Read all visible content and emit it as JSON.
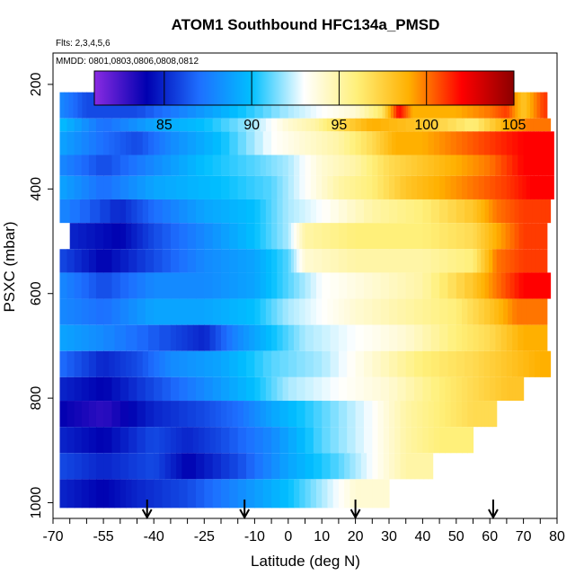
{
  "chart_data": {
    "type": "heatmap",
    "title": "ATOM1 Southbound HFC134a_PMSD",
    "annotations": [
      "Flts: 2,3,4,5,6",
      "MMDD: 0801,0803,0806,0808,0812"
    ],
    "xlabel": "Latitude (deg N)",
    "ylabel": "PSXC (mbar)",
    "xlim": [
      -70,
      80
    ],
    "ylim": [
      1030,
      140
    ],
    "x_ticks": [
      -70,
      -55,
      -40,
      -25,
      -10,
      0,
      10,
      20,
      30,
      40,
      50,
      60,
      70,
      80
    ],
    "x_tick_labels": [
      "-70",
      "-55",
      "-40",
      "-25",
      "-10",
      "0",
      "10",
      "20",
      "30",
      "40",
      "50",
      "60",
      "70",
      "80"
    ],
    "y_ticks": [
      200,
      400,
      600,
      800,
      1000
    ],
    "y_tick_labels": [
      "200",
      "400",
      "600",
      "800",
      "1000"
    ],
    "colorbar": {
      "range": [
        81,
        105
      ],
      "ticks": [
        85,
        90,
        95,
        100,
        105
      ],
      "tick_labels": [
        "85",
        "90",
        "95",
        "100",
        "105"
      ],
      "colors": [
        "#8a2be2",
        "#0000b0",
        "#1e6fff",
        "#00bfff",
        "#ffffff",
        "#fff07a",
        "#ffb000",
        "#ff0000",
        "#8b0000"
      ]
    },
    "arrow_latitudes": [
      -42,
      -13,
      20,
      61
    ],
    "layers": [
      {
        "pmin": 180,
        "pmax": 215,
        "segments": [
          [
            -41,
            84
          ],
          [
            -30,
            85
          ],
          [
            -10,
            89.5
          ],
          [
            10,
            92
          ],
          [
            20,
            93.5
          ],
          [
            30,
            92
          ]
        ],
        "xmax": 33
      },
      {
        "pmin": 215,
        "pmax": 265,
        "segments": [
          [
            -68,
            88
          ],
          [
            -60,
            86
          ],
          [
            -45,
            86
          ],
          [
            -30,
            88
          ],
          [
            -15,
            90
          ],
          [
            0,
            92
          ],
          [
            10,
            93
          ],
          [
            20,
            94
          ],
          [
            28,
            96.5
          ],
          [
            33,
            102
          ],
          [
            37,
            99
          ],
          [
            50,
            99
          ],
          [
            60,
            100
          ],
          [
            65,
            101
          ],
          [
            70,
            98
          ],
          [
            76,
            101
          ]
        ],
        "xmax": 77
      },
      {
        "pmin": 265,
        "pmax": 290,
        "segments": [
          [
            -68,
            90
          ],
          [
            -55,
            87
          ],
          [
            -40,
            89
          ],
          [
            -25,
            90
          ],
          [
            -10,
            92
          ],
          [
            0,
            94
          ],
          [
            8,
            95
          ],
          [
            15,
            97
          ],
          [
            25,
            99
          ],
          [
            40,
            98
          ],
          [
            55,
            96
          ],
          [
            65,
            99
          ],
          [
            72,
            100
          ]
        ],
        "xmax": 78
      },
      {
        "pmin": 290,
        "pmax": 335,
        "segments": [
          [
            -68,
            89
          ],
          [
            -55,
            87
          ],
          [
            -45,
            86
          ],
          [
            -35,
            88
          ],
          [
            -20,
            90
          ],
          [
            -5,
            93
          ],
          [
            5,
            94
          ],
          [
            15,
            95
          ],
          [
            25,
            97
          ],
          [
            32,
            99
          ],
          [
            40,
            99
          ],
          [
            50,
            100
          ],
          [
            60,
            101
          ],
          [
            70,
            102
          ]
        ],
        "xmax": 79
      },
      {
        "pmin": 335,
        "pmax": 375,
        "segments": [
          [
            -68,
            88
          ],
          [
            -55,
            86
          ],
          [
            -40,
            88
          ],
          [
            -25,
            90
          ],
          [
            -10,
            91
          ],
          [
            0,
            92
          ],
          [
            10,
            94
          ],
          [
            20,
            95
          ],
          [
            30,
            97
          ],
          [
            40,
            98
          ],
          [
            50,
            99
          ],
          [
            60,
            100
          ],
          [
            70,
            102
          ]
        ],
        "xmax": 79
      },
      {
        "pmin": 375,
        "pmax": 420,
        "segments": [
          [
            -68,
            89
          ],
          [
            -55,
            87
          ],
          [
            -40,
            89
          ],
          [
            -20,
            90
          ],
          [
            -5,
            91
          ],
          [
            5,
            93
          ],
          [
            15,
            95
          ],
          [
            25,
            96
          ],
          [
            35,
            98
          ],
          [
            45,
            99
          ],
          [
            55,
            100
          ],
          [
            65,
            101
          ],
          [
            72,
            102
          ]
        ],
        "xmax": 79
      },
      {
        "pmin": 420,
        "pmax": 465,
        "segments": [
          [
            -68,
            88
          ],
          [
            -50,
            85
          ],
          [
            -40,
            87
          ],
          [
            -25,
            89
          ],
          [
            -10,
            90
          ],
          [
            0,
            92
          ],
          [
            10,
            93
          ],
          [
            25,
            95
          ],
          [
            40,
            96
          ],
          [
            55,
            98
          ],
          [
            62,
            100
          ],
          [
            70,
            101
          ]
        ],
        "xmax": 78
      },
      {
        "pmin": 465,
        "pmax": 515,
        "segments": [
          [
            -65,
            85
          ],
          [
            -50,
            84
          ],
          [
            -40,
            86
          ],
          [
            -25,
            88
          ],
          [
            -10,
            90
          ],
          [
            0,
            92
          ],
          [
            5,
            95
          ],
          [
            20,
            96
          ],
          [
            40,
            96
          ],
          [
            55,
            97
          ],
          [
            62,
            99
          ],
          [
            70,
            101
          ]
        ],
        "xmax": 77
      },
      {
        "pmin": 515,
        "pmax": 560,
        "segments": [
          [
            -68,
            86
          ],
          [
            -55,
            84
          ],
          [
            -40,
            86
          ],
          [
            -25,
            88
          ],
          [
            -10,
            89
          ],
          [
            0,
            91
          ],
          [
            5,
            94
          ],
          [
            20,
            95
          ],
          [
            40,
            95
          ],
          [
            55,
            96
          ],
          [
            62,
            100
          ],
          [
            70,
            101
          ]
        ],
        "xmax": 77
      },
      {
        "pmin": 560,
        "pmax": 610,
        "segments": [
          [
            -68,
            88
          ],
          [
            -55,
            86
          ],
          [
            -40,
            88
          ],
          [
            -25,
            88
          ],
          [
            -10,
            89
          ],
          [
            0,
            91
          ],
          [
            10,
            93
          ],
          [
            25,
            94
          ],
          [
            40,
            95
          ],
          [
            55,
            98
          ],
          [
            62,
            100
          ],
          [
            70,
            102
          ]
        ],
        "xmax": 78
      },
      {
        "pmin": 610,
        "pmax": 660,
        "segments": [
          [
            -68,
            88
          ],
          [
            -55,
            87
          ],
          [
            -40,
            89
          ],
          [
            -25,
            89
          ],
          [
            -10,
            90
          ],
          [
            0,
            92
          ],
          [
            10,
            93
          ],
          [
            20,
            94
          ],
          [
            35,
            95
          ],
          [
            50,
            96
          ],
          [
            60,
            98
          ],
          [
            68,
            100
          ]
        ],
        "xmax": 77
      },
      {
        "pmin": 660,
        "pmax": 710,
        "segments": [
          [
            -68,
            89
          ],
          [
            -55,
            88
          ],
          [
            -35,
            86
          ],
          [
            -25,
            85
          ],
          [
            -15,
            88
          ],
          [
            -5,
            90
          ],
          [
            5,
            92
          ],
          [
            20,
            93
          ],
          [
            35,
            94
          ],
          [
            50,
            96
          ],
          [
            60,
            97
          ],
          [
            70,
            99
          ]
        ],
        "xmax": 77
      },
      {
        "pmin": 710,
        "pmax": 760,
        "segments": [
          [
            -68,
            87
          ],
          [
            -55,
            85
          ],
          [
            -45,
            86
          ],
          [
            -35,
            88
          ],
          [
            -20,
            89
          ],
          [
            -5,
            91
          ],
          [
            10,
            92
          ],
          [
            25,
            94
          ],
          [
            40,
            96
          ],
          [
            55,
            97
          ],
          [
            65,
            98
          ],
          [
            75,
            99
          ]
        ],
        "xmax": 78
      },
      {
        "pmin": 760,
        "pmax": 805,
        "segments": [
          [
            -68,
            85
          ],
          [
            -55,
            84
          ],
          [
            -40,
            86
          ],
          [
            -25,
            88
          ],
          [
            -10,
            90
          ],
          [
            0,
            92
          ],
          [
            15,
            93
          ],
          [
            30,
            94
          ],
          [
            45,
            96
          ],
          [
            55,
            97
          ],
          [
            65,
            98
          ]
        ],
        "xmax": 70
      },
      {
        "pmin": 805,
        "pmax": 855,
        "segments": [
          [
            -68,
            84
          ],
          [
            -55,
            83
          ],
          [
            -40,
            85
          ],
          [
            -25,
            86
          ],
          [
            -15,
            87
          ],
          [
            -5,
            89
          ],
          [
            10,
            91
          ],
          [
            25,
            93
          ],
          [
            35,
            95
          ],
          [
            45,
            96
          ],
          [
            55,
            97
          ]
        ],
        "xmax": 62
      },
      {
        "pmin": 855,
        "pmax": 905,
        "segments": [
          [
            -68,
            85
          ],
          [
            -55,
            84
          ],
          [
            -40,
            86
          ],
          [
            -30,
            85
          ],
          [
            -20,
            86
          ],
          [
            -5,
            88
          ],
          [
            10,
            91
          ],
          [
            25,
            93
          ],
          [
            35,
            95
          ],
          [
            45,
            96
          ]
        ],
        "xmax": 55
      },
      {
        "pmin": 905,
        "pmax": 955,
        "segments": [
          [
            -68,
            86
          ],
          [
            -55,
            85
          ],
          [
            -40,
            86
          ],
          [
            -30,
            84
          ],
          [
            -15,
            86
          ],
          [
            0,
            89
          ],
          [
            15,
            91
          ],
          [
            25,
            93
          ],
          [
            35,
            95
          ]
        ],
        "xmax": 43
      },
      {
        "pmin": 955,
        "pmax": 1010,
        "segments": [
          [
            -68,
            85
          ],
          [
            -55,
            84
          ],
          [
            -45,
            85
          ],
          [
            -30,
            86
          ],
          [
            -15,
            88
          ],
          [
            0,
            90
          ],
          [
            10,
            92
          ],
          [
            20,
            94
          ]
        ],
        "xmax": 30
      }
    ]
  }
}
